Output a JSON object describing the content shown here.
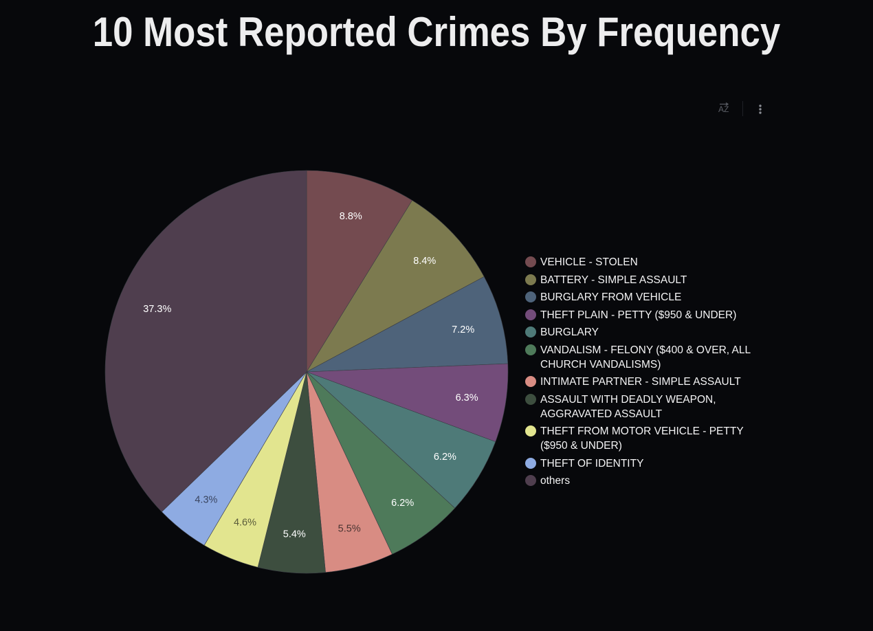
{
  "title": "10 Most Reported Crimes By Frequency",
  "toolbar": {
    "sort_icon": "sort-az-icon",
    "more_icon": "more-vertical-icon"
  },
  "chart_data": {
    "type": "pie",
    "title": "10 Most Reported Crimes By Frequency",
    "legend_position": "right",
    "slices": [
      {
        "label": "VEHICLE - STOLEN",
        "value": 8.8,
        "display": "8.8%",
        "color": "#744b50",
        "text_color": "#ffffff"
      },
      {
        "label": "BATTERY - SIMPLE ASSAULT",
        "value": 8.4,
        "display": "8.4%",
        "color": "#7c7a4f",
        "text_color": "#ffffff"
      },
      {
        "label": "BURGLARY FROM VEHICLE",
        "value": 7.2,
        "display": "7.2%",
        "color": "#4e637a",
        "text_color": "#ffffff"
      },
      {
        "label": "THEFT PLAIN - PETTY ($950 & UNDER)",
        "value": 6.3,
        "display": "6.3%",
        "color": "#734c7a",
        "text_color": "#ffffff"
      },
      {
        "label": "BURGLARY",
        "value": 6.2,
        "display": "6.2%",
        "color": "#4e7a78",
        "text_color": "#ffffff"
      },
      {
        "label": "VANDALISM - FELONY ($400 & OVER, ALL CHURCH VANDALISMS)",
        "value": 6.2,
        "display": "6.2%",
        "color": "#4e7a5a",
        "text_color": "#ffffff"
      },
      {
        "label": "INTIMATE PARTNER - SIMPLE ASSAULT",
        "value": 5.5,
        "display": "5.5%",
        "color": "#d88c83",
        "text_color": "#4a3432"
      },
      {
        "label": "ASSAULT WITH DEADLY WEAPON, AGGRAVATED ASSAULT",
        "value": 5.4,
        "display": "5.4%",
        "color": "#3d4e3f",
        "text_color": "#ffffff"
      },
      {
        "label": "THEFT FROM MOTOR VEHICLE - PETTY ($950 & UNDER)",
        "value": 4.6,
        "display": "4.6%",
        "color": "#e2e58f",
        "text_color": "#5a5b3a"
      },
      {
        "label": "THEFT OF IDENTITY",
        "value": 4.3,
        "display": "4.3%",
        "color": "#8eabe2",
        "text_color": "#3a4560"
      },
      {
        "label": "others",
        "value": 37.3,
        "display": "37.3%",
        "color": "#4f3e4e",
        "text_color": "#ffffff"
      }
    ]
  }
}
